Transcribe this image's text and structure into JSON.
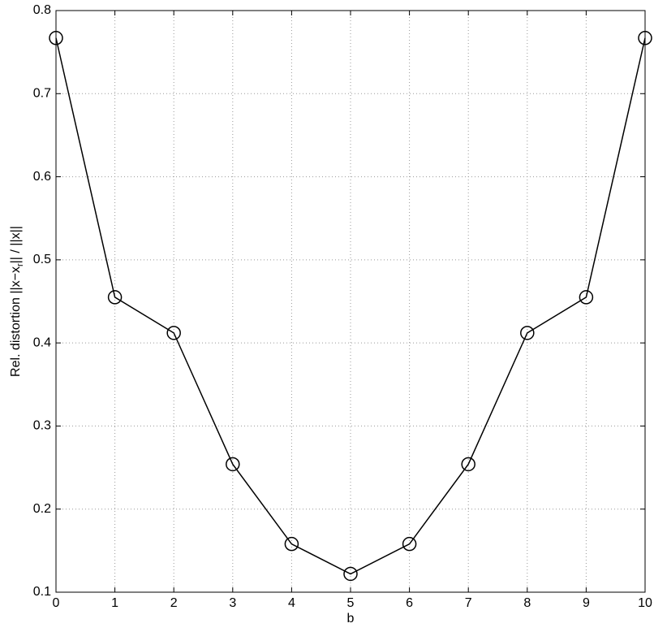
{
  "chart_data": {
    "type": "line",
    "ylabel": [
      "Rel. distortion ||x−x",
      "r",
      "|| / ||x||"
    ],
    "xlabel": "b",
    "x": [
      0,
      1,
      2,
      3,
      4,
      5,
      6,
      7,
      8,
      9,
      10
    ],
    "series": [
      {
        "color": "#000000",
        "marker": "circle",
        "values": [
          0.767,
          0.455,
          0.412,
          0.254,
          0.158,
          0.122,
          0.158,
          0.254,
          0.412,
          0.455,
          0.767
        ]
      }
    ],
    "xlim": [
      0,
      10
    ],
    "xticks": [
      0,
      1,
      2,
      3,
      4,
      5,
      6,
      7,
      8,
      9,
      10
    ],
    "ylim": [
      0.1,
      0.8
    ],
    "yticks": [
      0.1,
      0.2,
      0.3,
      0.4,
      0.5,
      0.6,
      0.7,
      0.8
    ],
    "grid": true
  }
}
